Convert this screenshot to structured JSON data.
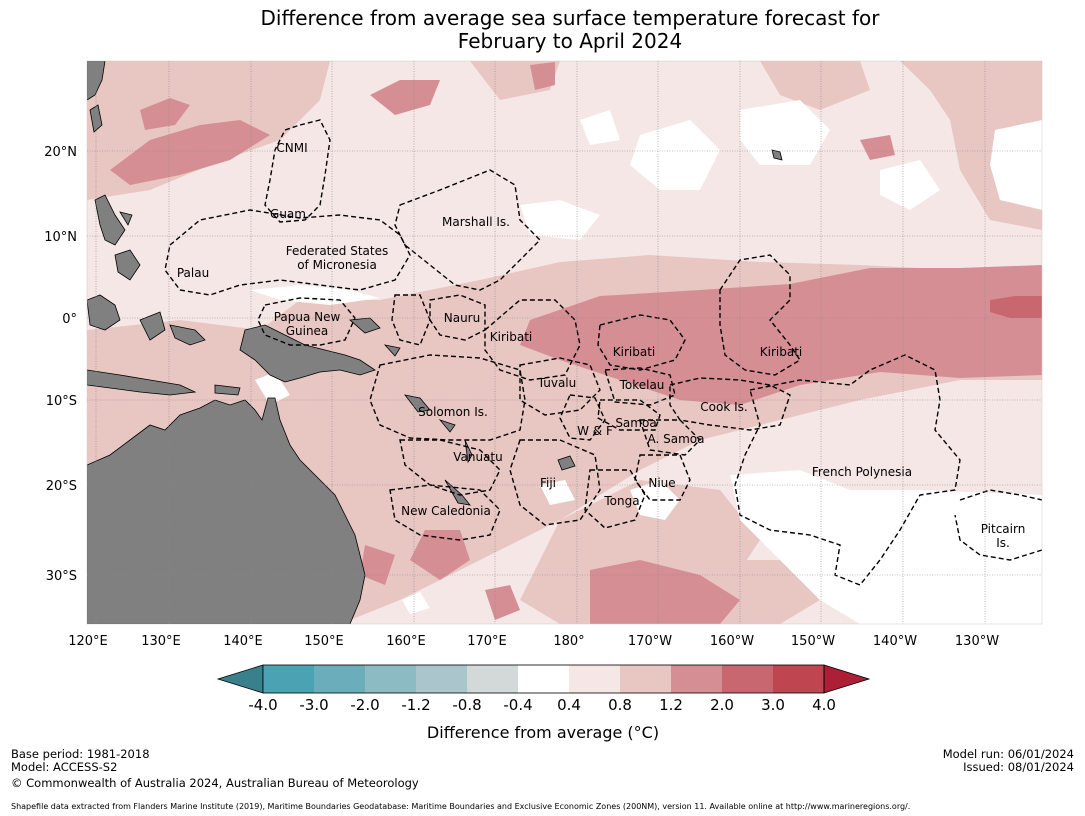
{
  "title": {
    "line1": "Difference from average sea surface temperature forecast for",
    "line2": "February to April 2024"
  },
  "axes": {
    "lon_ticks": [
      "120°E",
      "130°E",
      "140°E",
      "150°E",
      "160°E",
      "170°E",
      "180°",
      "170°W",
      "160°W",
      "150°W",
      "140°W",
      "130°W"
    ],
    "lat_ticks": [
      "20°N",
      "10°N",
      "0°",
      "10°S",
      "20°S",
      "30°S"
    ]
  },
  "regions": [
    {
      "id": "cnmi",
      "lines": [
        "CNMI"
      ]
    },
    {
      "id": "guam",
      "lines": [
        "Guam"
      ]
    },
    {
      "id": "marshall",
      "lines": [
        "Marshall Is."
      ]
    },
    {
      "id": "fsm",
      "lines": [
        "Federated States",
        "of Micronesia"
      ]
    },
    {
      "id": "palau",
      "lines": [
        "Palau"
      ]
    },
    {
      "id": "png",
      "lines": [
        "Papua New",
        "Guinea"
      ]
    },
    {
      "id": "nauru",
      "lines": [
        "Nauru"
      ]
    },
    {
      "id": "kiribati-w",
      "lines": [
        "Kiribati"
      ]
    },
    {
      "id": "kiribati-c",
      "lines": [
        "Kiribati"
      ]
    },
    {
      "id": "kiribati-e",
      "lines": [
        "Kiribati"
      ]
    },
    {
      "id": "tuvalu",
      "lines": [
        "Tuvalu"
      ]
    },
    {
      "id": "tokelau",
      "lines": [
        "Tokelau"
      ]
    },
    {
      "id": "cook",
      "lines": [
        "Cook Is."
      ]
    },
    {
      "id": "solomon",
      "lines": [
        "Solomon Is."
      ]
    },
    {
      "id": "samoa",
      "lines": [
        "Samoa"
      ]
    },
    {
      "id": "wf",
      "lines": [
        "W & F"
      ]
    },
    {
      "id": "asamoa",
      "lines": [
        "A. Samoa"
      ]
    },
    {
      "id": "vanuatu",
      "lines": [
        "Vanuatu"
      ]
    },
    {
      "id": "fiji",
      "lines": [
        "Fiji"
      ]
    },
    {
      "id": "niue",
      "lines": [
        "Niue"
      ]
    },
    {
      "id": "tonga",
      "lines": [
        "Tonga"
      ]
    },
    {
      "id": "frenchpoly",
      "lines": [
        "French Polynesia"
      ]
    },
    {
      "id": "newcal",
      "lines": [
        "New Caledonia"
      ]
    },
    {
      "id": "pitcairn",
      "lines": [
        "Pitcairn",
        "Is."
      ]
    }
  ],
  "legend": {
    "title": "Difference from average (°C)",
    "tick_labels": [
      "-4.0",
      "-3.0",
      "-2.0",
      "-1.2",
      "-0.8",
      "-0.4",
      "0.4",
      "0.8",
      "1.2",
      "2.0",
      "3.0",
      "4.0"
    ],
    "bins": [
      {
        "range": "< -4.0",
        "color": "#3a7f8c"
      },
      {
        "range": "-4.0 to -3.0",
        "color": "#4aa2b3"
      },
      {
        "range": "-3.0 to -2.0",
        "color": "#6badbb"
      },
      {
        "range": "-2.0 to -1.2",
        "color": "#8dbbc4"
      },
      {
        "range": "-1.2 to -0.8",
        "color": "#aac6ca"
      },
      {
        "range": "-0.8 to -0.4",
        "color": "#d3d9d8"
      },
      {
        "range": "-0.4 to 0.4",
        "color": "#ffffff"
      },
      {
        "range": "0.4 to 0.8",
        "color": "#f5e7e6"
      },
      {
        "range": "0.8 to 1.2",
        "color": "#e8c6c2"
      },
      {
        "range": "1.2 to 2.0",
        "color": "#d68e95"
      },
      {
        "range": "2.0 to 3.0",
        "color": "#c96770"
      },
      {
        "range": "3.0 to 4.0",
        "color": "#bf4550"
      },
      {
        "range": "> 4.0",
        "color": "#ac1f36"
      }
    ]
  },
  "footer": {
    "base_period": "Base period: 1981-2018",
    "model": "Model: ACCESS-S2",
    "copyright": "© Commonwealth of Australia 2024, Australian Bureau of Meteorology",
    "model_run": "Model run: 06/01/2024",
    "issued": "Issued: 08/01/2024",
    "shapefile_note": "Shapefile data extracted from Flanders Marine Institute (2019), Maritime Boundaries Geodatabase: Maritime Boundaries and Exclusive Economic Zones (200NM), version 11. Available online at http://www.marineregions.org/."
  },
  "colors": {
    "land": "#808080",
    "grid": "#888888",
    "eez_border": "#000000"
  }
}
